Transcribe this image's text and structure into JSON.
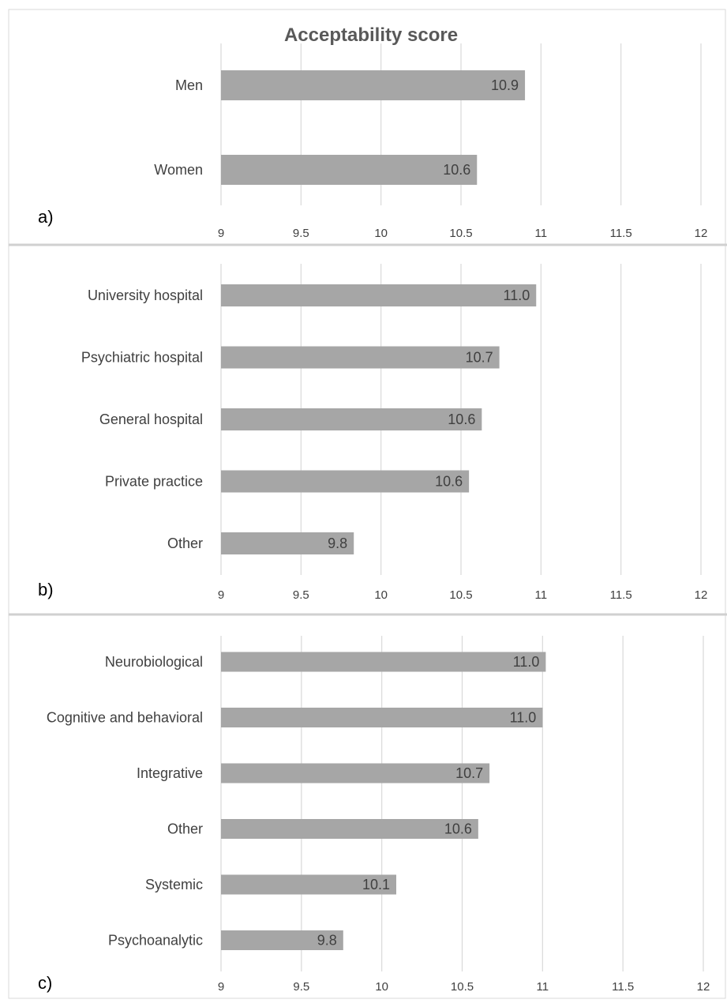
{
  "figure_title": "Acceptability score",
  "chart_data": [
    {
      "type": "bar",
      "orientation": "horizontal",
      "panel_label": "a)",
      "title": "Acceptability score",
      "categories": [
        "Men",
        "Women"
      ],
      "values": [
        10.9,
        10.6
      ],
      "data_labels": [
        "10.9",
        "10.6"
      ],
      "xlim": [
        9,
        12
      ],
      "xticks": [
        "9",
        "9.5",
        "10",
        "10.5",
        "11",
        "11.5",
        "12"
      ],
      "grid": true,
      "bar_color": "#a6a6a6"
    },
    {
      "type": "bar",
      "orientation": "horizontal",
      "panel_label": "b)",
      "categories": [
        "University hospital",
        "Psychiatric hospital",
        "General hospital",
        "Private practice",
        "Other"
      ],
      "values": [
        10.97,
        10.74,
        10.63,
        10.55,
        9.83
      ],
      "data_labels": [
        "11.0",
        "10.7",
        "10.6",
        "10.6",
        "9.8"
      ],
      "xlim": [
        9,
        12
      ],
      "xticks": [
        "9",
        "9.5",
        "10",
        "10.5",
        "11",
        "11.5",
        "12"
      ],
      "grid": true,
      "bar_color": "#a6a6a6"
    },
    {
      "type": "bar",
      "orientation": "horizontal",
      "panel_label": "c)",
      "categories": [
        "Neurobiological",
        "Cognitive and behavioral",
        "Integrative",
        "Other",
        "Systemic",
        "Psychoanalytic"
      ],
      "values": [
        11.02,
        11.0,
        10.67,
        10.6,
        10.09,
        9.76
      ],
      "data_labels": [
        "11.0",
        "11.0",
        "10.7",
        "10.6",
        "10.1",
        "9.8"
      ],
      "xlim": [
        9,
        12
      ],
      "xticks": [
        "9",
        "9.5",
        "10",
        "10.5",
        "11",
        "11.5",
        "12"
      ],
      "grid": true,
      "bar_color": "#a6a6a6"
    }
  ]
}
